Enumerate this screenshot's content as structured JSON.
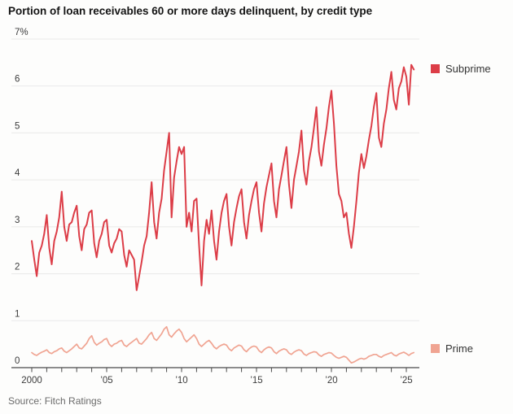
{
  "colors": {
    "subprime": "#dc3d47",
    "prime": "#f0a492",
    "grid": "#e9e9e9",
    "axis": "#4a4a4a",
    "tick_label": "#3d3d3d"
  },
  "chart_data": {
    "type": "line",
    "title": "Portion of loan receivables 60 or more days delinquent, by credit type",
    "source": "Source: Fitch Ratings",
    "y_unit": "%",
    "ylim": [
      0,
      7
    ],
    "grid": "horizontal",
    "legend_position": "right",
    "y_ticks": [
      {
        "value": 7,
        "label": "7%"
      },
      {
        "value": 6,
        "label": "6"
      },
      {
        "value": 5,
        "label": "5"
      },
      {
        "value": 4,
        "label": "4"
      },
      {
        "value": 3,
        "label": "3"
      },
      {
        "value": 2,
        "label": "2"
      },
      {
        "value": 1,
        "label": "1"
      },
      {
        "value": 0,
        "label": "0"
      }
    ],
    "x_ticks": [
      {
        "year": 2000,
        "label": "2000"
      },
      {
        "year": 2005,
        "label": "’05"
      },
      {
        "year": 2010,
        "label": "’10"
      },
      {
        "year": 2015,
        "label": "’15"
      },
      {
        "year": 2020,
        "label": "’20"
      },
      {
        "year": 2025,
        "label": "’25"
      }
    ],
    "x_minor_tick_years": [
      2000,
      2025
    ],
    "x_start": 2000,
    "x_step_years": 0.1666667,
    "series": [
      {
        "name": "Subprime",
        "color": "#dc3d47",
        "values": [
          2.7,
          2.3,
          1.95,
          2.45,
          2.6,
          2.85,
          3.25,
          2.55,
          2.2,
          2.7,
          2.9,
          3.2,
          3.75,
          3.0,
          2.7,
          3.05,
          3.1,
          3.3,
          3.45,
          2.8,
          2.5,
          2.95,
          3.05,
          3.3,
          3.35,
          2.65,
          2.35,
          2.7,
          2.85,
          3.1,
          3.15,
          2.6,
          2.45,
          2.65,
          2.75,
          2.95,
          2.9,
          2.4,
          2.15,
          2.5,
          2.4,
          2.3,
          1.65,
          1.95,
          2.25,
          2.6,
          2.8,
          3.3,
          3.95,
          3.1,
          2.75,
          3.3,
          3.6,
          4.2,
          4.6,
          5.0,
          3.2,
          4.05,
          4.4,
          4.7,
          4.55,
          4.7,
          3.0,
          3.3,
          2.9,
          3.55,
          3.6,
          2.6,
          1.75,
          2.7,
          3.15,
          2.85,
          3.35,
          2.7,
          2.3,
          2.9,
          3.3,
          3.55,
          3.7,
          3.0,
          2.6,
          3.1,
          3.4,
          3.65,
          3.8,
          3.1,
          2.75,
          3.25,
          3.55,
          3.8,
          3.95,
          3.3,
          2.9,
          3.5,
          3.85,
          4.1,
          4.35,
          3.55,
          3.2,
          3.8,
          4.1,
          4.4,
          4.7,
          3.9,
          3.4,
          4.0,
          4.3,
          4.6,
          5.05,
          4.2,
          3.9,
          4.4,
          4.7,
          5.1,
          5.55,
          4.6,
          4.3,
          4.75,
          5.1,
          5.55,
          5.9,
          5.2,
          4.3,
          3.7,
          3.55,
          3.2,
          3.3,
          2.85,
          2.55,
          3.0,
          3.55,
          4.15,
          4.55,
          4.25,
          4.5,
          4.85,
          5.15,
          5.55,
          5.85,
          4.9,
          4.7,
          5.2,
          5.5,
          5.95,
          6.3,
          5.7,
          5.5,
          5.95,
          6.1,
          6.4,
          6.2,
          5.6,
          6.45,
          6.35
        ]
      },
      {
        "name": "Prime",
        "color": "#f0a492",
        "values": [
          0.32,
          0.28,
          0.26,
          0.3,
          0.33,
          0.35,
          0.38,
          0.32,
          0.3,
          0.34,
          0.36,
          0.4,
          0.42,
          0.35,
          0.32,
          0.36,
          0.4,
          0.45,
          0.5,
          0.42,
          0.4,
          0.46,
          0.52,
          0.62,
          0.68,
          0.54,
          0.48,
          0.52,
          0.55,
          0.6,
          0.62,
          0.5,
          0.45,
          0.5,
          0.52,
          0.56,
          0.58,
          0.48,
          0.45,
          0.5,
          0.54,
          0.58,
          0.62,
          0.52,
          0.5,
          0.56,
          0.62,
          0.7,
          0.75,
          0.62,
          0.58,
          0.65,
          0.72,
          0.82,
          0.87,
          0.7,
          0.65,
          0.72,
          0.78,
          0.82,
          0.75,
          0.62,
          0.55,
          0.6,
          0.65,
          0.7,
          0.62,
          0.5,
          0.45,
          0.5,
          0.55,
          0.58,
          0.52,
          0.44,
          0.4,
          0.45,
          0.48,
          0.5,
          0.48,
          0.4,
          0.36,
          0.42,
          0.45,
          0.48,
          0.46,
          0.38,
          0.34,
          0.4,
          0.44,
          0.46,
          0.44,
          0.36,
          0.32,
          0.38,
          0.42,
          0.44,
          0.42,
          0.34,
          0.3,
          0.35,
          0.38,
          0.4,
          0.38,
          0.31,
          0.28,
          0.33,
          0.36,
          0.38,
          0.36,
          0.29,
          0.26,
          0.3,
          0.32,
          0.34,
          0.33,
          0.27,
          0.24,
          0.28,
          0.3,
          0.32,
          0.31,
          0.26,
          0.22,
          0.2,
          0.22,
          0.24,
          0.22,
          0.16,
          0.1,
          0.12,
          0.15,
          0.18,
          0.2,
          0.18,
          0.2,
          0.24,
          0.26,
          0.28,
          0.28,
          0.24,
          0.22,
          0.26,
          0.28,
          0.3,
          0.32,
          0.27,
          0.25,
          0.29,
          0.31,
          0.33,
          0.3,
          0.26,
          0.3,
          0.32
        ]
      }
    ]
  }
}
